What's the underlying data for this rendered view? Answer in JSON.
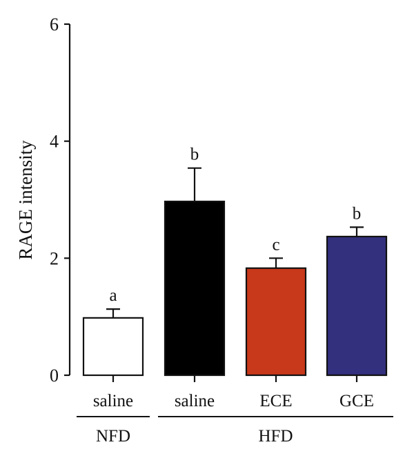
{
  "chart_data": {
    "type": "bar",
    "ylabel": "RAGE intensity",
    "xlabel": "",
    "ylim": [
      0,
      6
    ],
    "yticks": [
      0,
      2,
      4,
      6
    ],
    "grid": false,
    "categories": [
      "saline",
      "saline",
      "ECE",
      "GCE"
    ],
    "values": [
      0.98,
      2.97,
      1.83,
      2.37
    ],
    "errors": [
      0.15,
      0.57,
      0.17,
      0.16
    ],
    "significance": [
      "a",
      "b",
      "c",
      "b"
    ],
    "bar_colors": [
      "#ffffff",
      "#000000",
      "#c8381a",
      "#33307d"
    ],
    "groups": [
      {
        "label": "NFD",
        "categories": [
          0
        ]
      },
      {
        "label": "HFD",
        "categories": [
          1,
          2,
          3
        ]
      }
    ]
  }
}
